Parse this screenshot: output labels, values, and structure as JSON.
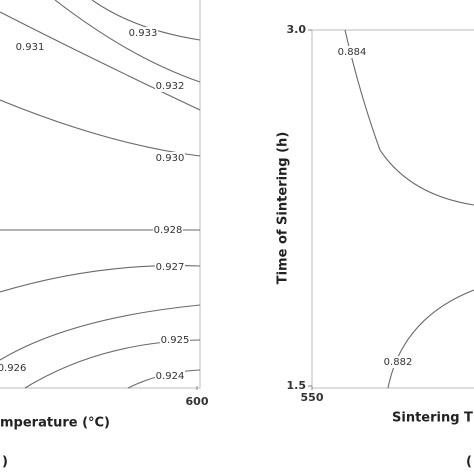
{
  "chart_data": [
    {
      "type": "contour",
      "xlabel": "mperature (°C)",
      "xticks": [
        600
      ],
      "panel_label": ")",
      "levels": [
        {
          "value": 0.933,
          "label": "0.933"
        },
        {
          "value": 0.931,
          "label": "0.931"
        },
        {
          "value": 0.932,
          "label": "0.932"
        },
        {
          "value": 0.93,
          "label": "0.930"
        },
        {
          "value": 0.928,
          "label": "0.928"
        },
        {
          "value": 0.927,
          "label": "0.927"
        },
        {
          "value": 0.926,
          "label": "0.926"
        },
        {
          "value": 0.925,
          "label": "0.925"
        },
        {
          "value": 0.924,
          "label": "0.924"
        }
      ]
    },
    {
      "type": "contour",
      "xlabel": "Sintering T",
      "ylabel": "Time of Sintering (h)",
      "xticks": [
        550
      ],
      "ylim": [
        1.5,
        3
      ],
      "yticks": [
        {
          "value": 3,
          "label": "3.0"
        },
        1.5
      ],
      "panel_label": "(",
      "levels": [
        {
          "value": 0.884,
          "label": "0.884"
        },
        {
          "value": 0.882,
          "label": "0.882"
        }
      ]
    }
  ]
}
